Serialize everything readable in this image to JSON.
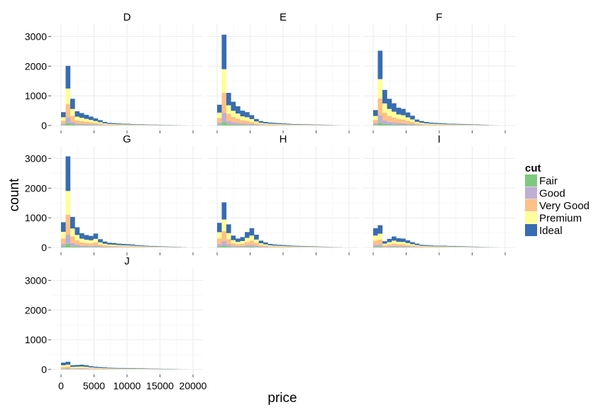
{
  "chart_data": {
    "type": "bar",
    "stacked": true,
    "xlabel": "price",
    "ylabel": "count",
    "xlim": [
      0,
      20000
    ],
    "ylim": [
      0,
      3200
    ],
    "x_ticks": [
      0,
      5000,
      10000,
      15000,
      20000
    ],
    "x_tick_labels": [
      "0",
      "5000",
      "10000",
      "15000",
      "20000"
    ],
    "y_ticks": [
      0,
      1000,
      2000,
      3000
    ],
    "y_tick_labels": [
      "0",
      "1000",
      "2000",
      "3000"
    ],
    "grid": true,
    "legend": {
      "title": "cut",
      "position": "right"
    },
    "bin_width": 700,
    "bin_start": 0,
    "series": [
      {
        "name": "Fair",
        "color": "#7fc97f"
      },
      {
        "name": "Good",
        "color": "#beaed4"
      },
      {
        "name": "Very Good",
        "color": "#fdc086"
      },
      {
        "name": "Premium",
        "color": "#ffff99"
      },
      {
        "name": "Ideal",
        "color": "#386cb0"
      }
    ],
    "facets": [
      {
        "label": "D",
        "totals": [
          450,
          2010,
          900,
          480,
          420,
          360,
          300,
          240,
          180,
          120,
          90,
          80,
          70,
          60,
          60,
          50,
          40,
          40,
          35,
          30,
          30,
          25,
          20,
          20,
          15,
          10,
          5
        ]
      },
      {
        "label": "E",
        "totals": [
          700,
          3060,
          1100,
          800,
          650,
          500,
          450,
          350,
          220,
          150,
          120,
          100,
          90,
          80,
          70,
          60,
          50,
          50,
          45,
          40,
          35,
          30,
          30,
          25,
          20,
          10,
          5
        ]
      },
      {
        "label": "F",
        "totals": [
          520,
          2520,
          1200,
          900,
          750,
          600,
          560,
          440,
          330,
          200,
          150,
          120,
          100,
          90,
          80,
          70,
          60,
          60,
          55,
          50,
          45,
          40,
          35,
          30,
          25,
          10,
          5
        ]
      },
      {
        "label": "G",
        "totals": [
          850,
          3070,
          1030,
          680,
          480,
          420,
          390,
          470,
          280,
          200,
          160,
          150,
          130,
          120,
          110,
          100,
          80,
          70,
          60,
          50,
          50,
          40,
          35,
          30,
          25,
          20,
          10
        ]
      },
      {
        "label": "H",
        "totals": [
          830,
          1520,
          780,
          400,
          300,
          350,
          520,
          650,
          430,
          230,
          170,
          120,
          100,
          90,
          80,
          70,
          60,
          55,
          50,
          45,
          40,
          35,
          30,
          25,
          20,
          15,
          10
        ]
      },
      {
        "label": "I",
        "totals": [
          650,
          750,
          210,
          290,
          370,
          310,
          300,
          240,
          180,
          130,
          90,
          80,
          70,
          60,
          60,
          60,
          50,
          50,
          45,
          40,
          35,
          30,
          25,
          20,
          15,
          10,
          5
        ]
      },
      {
        "label": "J",
        "totals": [
          230,
          260,
          140,
          150,
          160,
          140,
          110,
          90,
          80,
          70,
          60,
          55,
          50,
          50,
          45,
          45,
          40,
          40,
          35,
          30,
          30,
          25,
          20,
          20,
          15,
          10,
          5
        ]
      }
    ],
    "cut_shares": [
      0.04,
      0.1,
      0.22,
      0.26,
      0.38
    ]
  }
}
